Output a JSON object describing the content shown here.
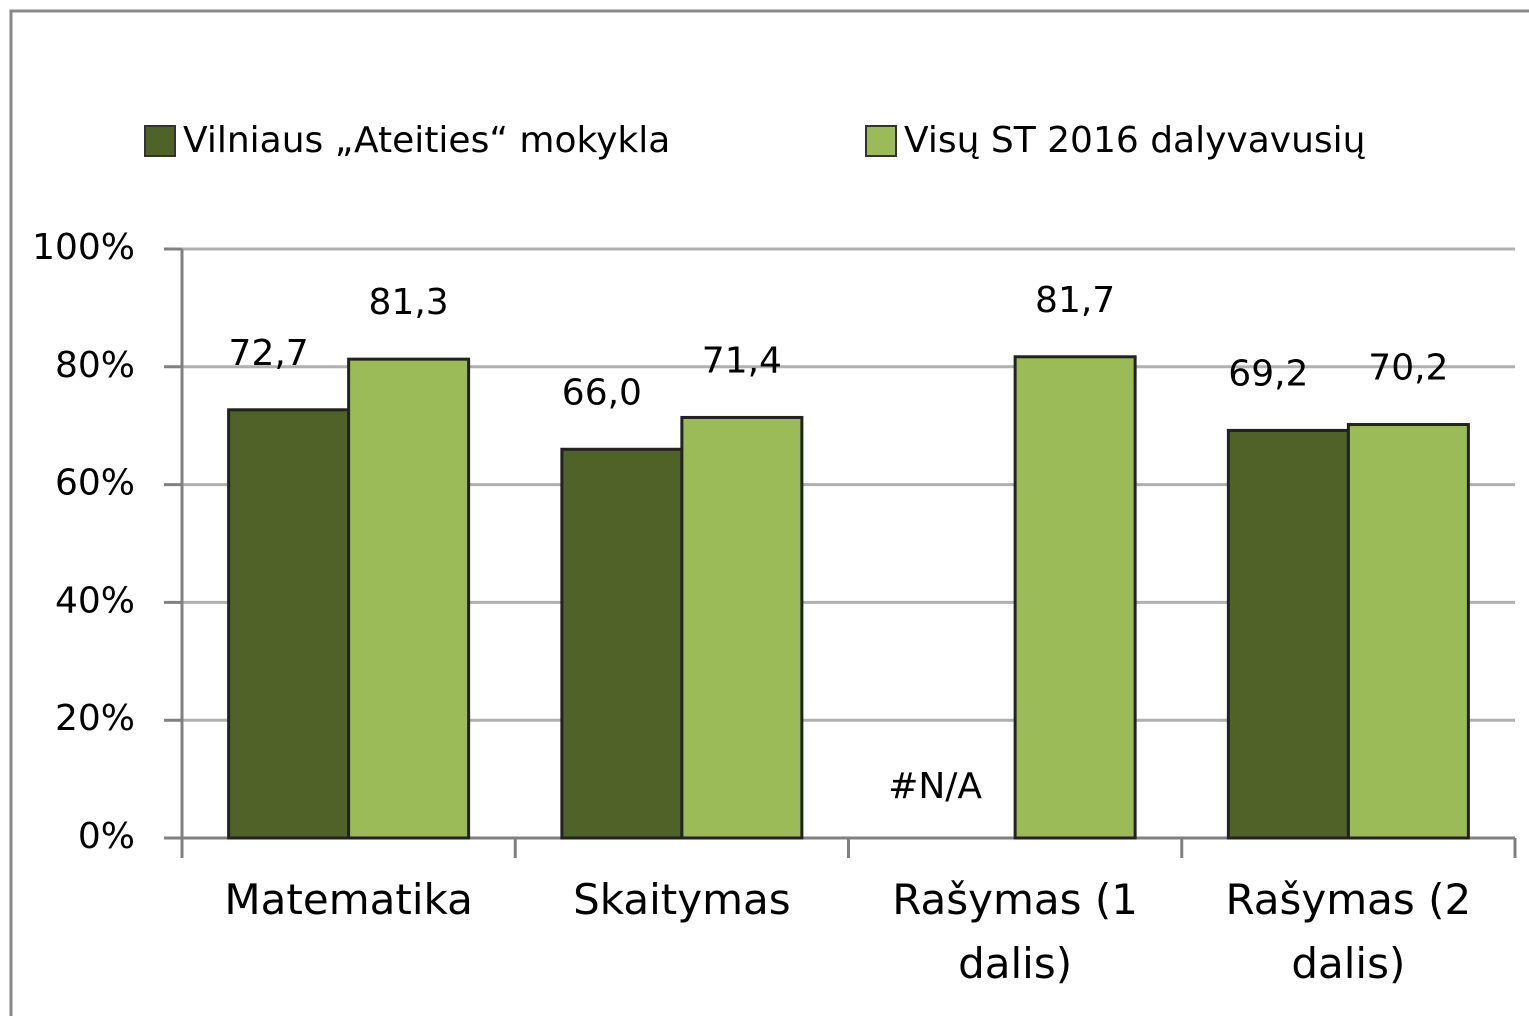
{
  "chart_data": {
    "type": "bar",
    "categories": [
      "Matematika",
      "Skaitymas",
      "Rašymas (1 dalis)",
      "Rašymas (2 dalis)"
    ],
    "series": [
      {
        "name": "Vilniaus „Ateities“ mokykla",
        "color": "#4f6228",
        "values": [
          72.7,
          66.0,
          null,
          69.2
        ],
        "value_labels": [
          "72,7",
          "66,0",
          "#N/A",
          "69,2"
        ]
      },
      {
        "name": "Visų ST 2016 dalyvavusių",
        "color": "#9bbb59",
        "values": [
          81.3,
          71.4,
          81.7,
          70.2
        ],
        "value_labels": [
          "81,3",
          "71,4",
          "81,7",
          "70,2"
        ]
      }
    ],
    "ylim": [
      0,
      100
    ],
    "yticks": [
      {
        "value": 0,
        "label": "0%"
      },
      {
        "value": 20,
        "label": "20%"
      },
      {
        "value": 40,
        "label": "40%"
      },
      {
        "value": 60,
        "label": "60%"
      },
      {
        "value": 80,
        "label": "80%"
      },
      {
        "value": 100,
        "label": "100%"
      }
    ],
    "grid": true,
    "legend": "top"
  }
}
